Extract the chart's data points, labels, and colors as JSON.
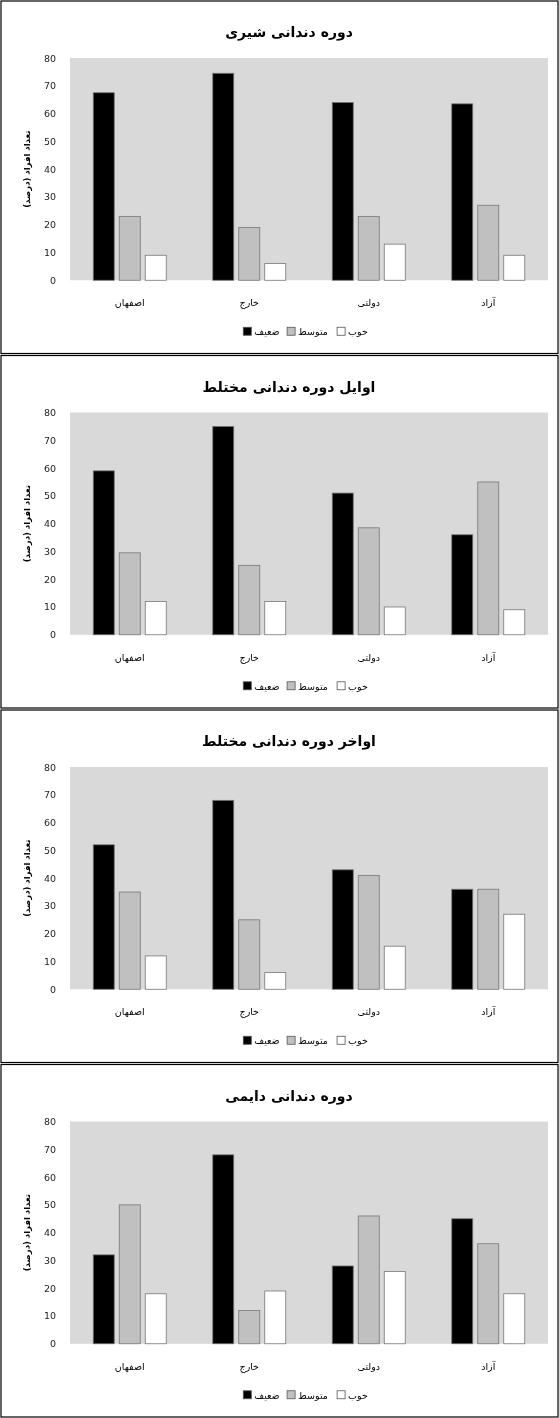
{
  "chart_data": [
    {
      "type": "bar",
      "title": "دوره دندانی شیری",
      "ylabel": "تعداد افراد (درصد)",
      "categories": [
        "اصفهان",
        "خارج",
        "دولتی",
        "آزاد"
      ],
      "series": [
        {
          "name": "ضعیف",
          "color": "#000000",
          "values": [
            67.5,
            74.5,
            64,
            63.5
          ]
        },
        {
          "name": "متوسط",
          "color": "#c0c0c0",
          "values": [
            23,
            19,
            23,
            27
          ]
        },
        {
          "name": "خوب",
          "color": "#ffffff",
          "values": [
            9,
            6,
            13,
            9
          ]
        }
      ],
      "ylim": [
        0,
        80
      ],
      "yticks": [
        0,
        10,
        20,
        30,
        40,
        50,
        60,
        70,
        80
      ],
      "legend": "bottom"
    },
    {
      "type": "bar",
      "title": "اوایل دوره دندانی مختلط",
      "ylabel": "تعداد افراد (درصد)",
      "categories": [
        "اصفهان",
        "خارج",
        "دولتی",
        "آزاد"
      ],
      "series": [
        {
          "name": "ضعیف",
          "color": "#000000",
          "values": [
            59,
            75,
            51,
            36
          ]
        },
        {
          "name": "متوسط",
          "color": "#c0c0c0",
          "values": [
            29.5,
            25,
            38.5,
            55
          ]
        },
        {
          "name": "خوب",
          "color": "#ffffff",
          "values": [
            12,
            12,
            10,
            9
          ]
        }
      ],
      "ylim": [
        0,
        80
      ],
      "yticks": [
        0,
        10,
        20,
        30,
        40,
        50,
        60,
        70,
        80
      ],
      "legend": "bottom"
    },
    {
      "type": "bar",
      "title": "اواخر دوره دندانی مختلط",
      "ylabel": "تعداد افراد (درصد)",
      "categories": [
        "اصفهان",
        "خارج",
        "دولتی",
        "آزاد"
      ],
      "series": [
        {
          "name": "ضعیف",
          "color": "#000000",
          "values": [
            52,
            68,
            43,
            36
          ]
        },
        {
          "name": "متوسط",
          "color": "#c0c0c0",
          "values": [
            35,
            25,
            41,
            36
          ]
        },
        {
          "name": "خوب",
          "color": "#ffffff",
          "values": [
            12,
            6,
            15.5,
            27
          ]
        }
      ],
      "ylim": [
        0,
        80
      ],
      "yticks": [
        0,
        10,
        20,
        30,
        40,
        50,
        60,
        70,
        80
      ],
      "legend": "bottom"
    },
    {
      "type": "bar",
      "title": "دوره دندانی دایمی",
      "ylabel": "تعداد افراد (درصد)",
      "categories": [
        "اصفهان",
        "خارج",
        "دولتی",
        "آزاد"
      ],
      "series": [
        {
          "name": "ضعیف",
          "color": "#000000",
          "values": [
            32,
            68,
            28,
            45
          ]
        },
        {
          "name": "متوسط",
          "color": "#c0c0c0",
          "values": [
            50,
            12,
            46,
            36
          ]
        },
        {
          "name": "خوب",
          "color": "#ffffff",
          "values": [
            18,
            19,
            26,
            18
          ]
        }
      ],
      "ylim": [
        0,
        80
      ],
      "yticks": [
        0,
        10,
        20,
        30,
        40,
        50,
        60,
        70,
        80
      ],
      "legend": "bottom"
    }
  ]
}
